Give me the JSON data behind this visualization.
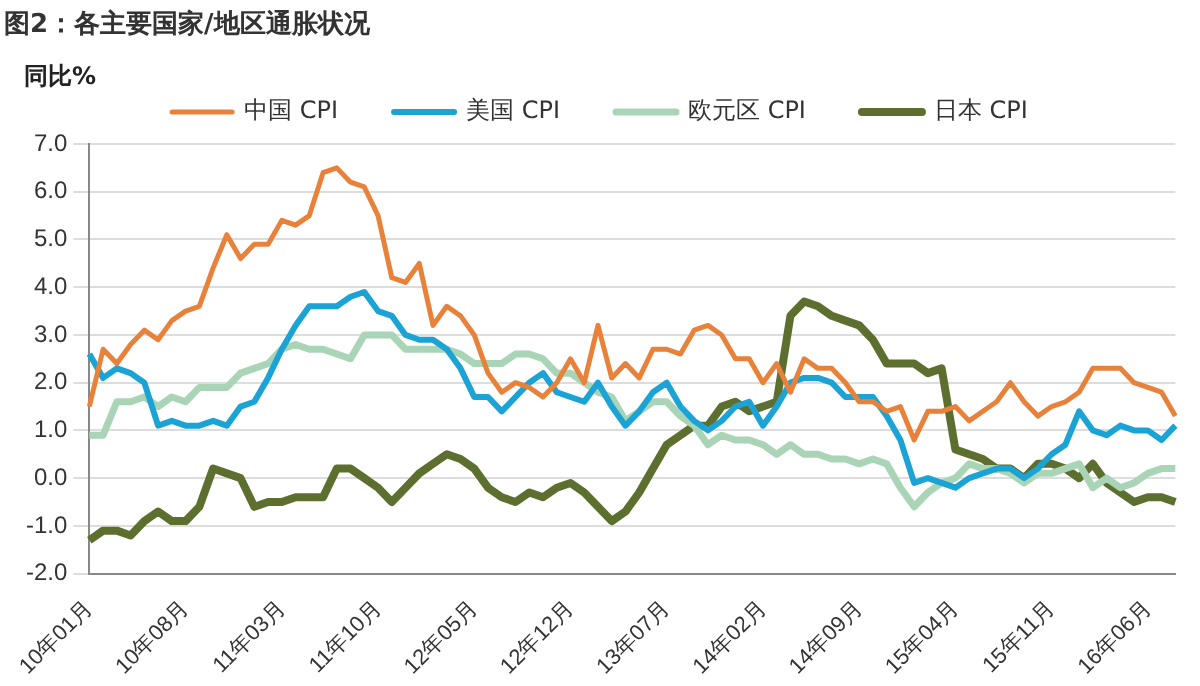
{
  "chart_data": {
    "type": "line",
    "title": "图2：各主要国家/地区通胀状况",
    "ylabel": "同比%",
    "categories": [
      "10年01月",
      null,
      null,
      null,
      null,
      null,
      null,
      "10年08月",
      null,
      null,
      null,
      null,
      null,
      null,
      "11年03月",
      null,
      null,
      null,
      null,
      null,
      null,
      "11年10月",
      null,
      null,
      null,
      null,
      null,
      null,
      "12年05月",
      null,
      null,
      null,
      null,
      null,
      null,
      "12年12月",
      null,
      null,
      null,
      null,
      null,
      null,
      "13年07月",
      null,
      null,
      null,
      null,
      null,
      null,
      "14年02月",
      null,
      null,
      null,
      null,
      null,
      null,
      "14年09月",
      null,
      null,
      null,
      null,
      null,
      null,
      "15年04月",
      null,
      null,
      null,
      null,
      null,
      null,
      "15年11月",
      null,
      null,
      null,
      null,
      null,
      null,
      "16年06月",
      null,
      null
    ],
    "series": [
      {
        "name": "中国 CPI",
        "color": "#e8823a",
        "values": [
          1.5,
          2.7,
          2.4,
          2.8,
          3.1,
          2.9,
          3.3,
          3.5,
          3.6,
          4.4,
          5.1,
          4.6,
          4.9,
          4.9,
          5.4,
          5.3,
          5.5,
          6.4,
          6.5,
          6.2,
          6.1,
          5.5,
          4.2,
          4.1,
          4.5,
          3.2,
          3.6,
          3.4,
          3.0,
          2.2,
          1.8,
          2.0,
          1.9,
          1.7,
          2.0,
          2.5,
          2.0,
          3.2,
          2.1,
          2.4,
          2.1,
          2.7,
          2.7,
          2.6,
          3.1,
          3.2,
          3.0,
          2.5,
          2.5,
          2.0,
          2.4,
          1.8,
          2.5,
          2.3,
          2.3,
          2.0,
          1.6,
          1.6,
          1.4,
          1.5,
          0.8,
          1.4,
          1.4,
          1.5,
          1.2,
          1.4,
          1.6,
          2.0,
          1.6,
          1.3,
          1.5,
          1.6,
          1.8,
          2.3,
          2.3,
          2.3,
          2.0,
          1.9,
          1.8,
          1.3
        ]
      },
      {
        "name": "美国 CPI",
        "color": "#1aa3d4",
        "values": [
          2.6,
          2.1,
          2.3,
          2.2,
          2.0,
          1.1,
          1.2,
          1.1,
          1.1,
          1.2,
          1.1,
          1.5,
          1.6,
          2.1,
          2.7,
          3.2,
          3.6,
          3.6,
          3.6,
          3.8,
          3.9,
          3.5,
          3.4,
          3.0,
          2.9,
          2.9,
          2.7,
          2.3,
          1.7,
          1.7,
          1.4,
          1.7,
          2.0,
          2.2,
          1.8,
          1.7,
          1.6,
          2.0,
          1.5,
          1.1,
          1.4,
          1.8,
          2.0,
          1.5,
          1.2,
          1.0,
          1.2,
          1.5,
          1.6,
          1.1,
          1.5,
          2.0,
          2.1,
          2.1,
          2.0,
          1.7,
          1.7,
          1.7,
          1.3,
          0.8,
          -0.1,
          0.0,
          -0.1,
          -0.2,
          0.0,
          0.1,
          0.2,
          0.2,
          0.0,
          0.2,
          0.5,
          0.7,
          1.4,
          1.0,
          0.9,
          1.1,
          1.0,
          1.0,
          0.8,
          1.1
        ]
      },
      {
        "name": "欧元区 CPI",
        "color": "#a9d4b6",
        "values": [
          0.9,
          0.9,
          1.6,
          1.6,
          1.7,
          1.5,
          1.7,
          1.6,
          1.9,
          1.9,
          1.9,
          2.2,
          2.3,
          2.4,
          2.7,
          2.8,
          2.7,
          2.7,
          2.6,
          2.5,
          3.0,
          3.0,
          3.0,
          2.7,
          2.7,
          2.7,
          2.7,
          2.6,
          2.4,
          2.4,
          2.4,
          2.6,
          2.6,
          2.5,
          2.2,
          2.2,
          2.0,
          1.8,
          1.7,
          1.2,
          1.4,
          1.6,
          1.6,
          1.3,
          1.1,
          0.7,
          0.9,
          0.8,
          0.8,
          0.7,
          0.5,
          0.7,
          0.5,
          0.5,
          0.4,
          0.4,
          0.3,
          0.4,
          0.3,
          -0.2,
          -0.6,
          -0.3,
          -0.1,
          0.0,
          0.3,
          0.2,
          0.2,
          0.1,
          -0.1,
          0.1,
          0.1,
          0.2,
          0.3,
          -0.2,
          0.0,
          -0.2,
          -0.1,
          0.1,
          0.2,
          0.2
        ]
      },
      {
        "name": "日本 CPI",
        "color": "#5c6f2f",
        "values": [
          -1.3,
          -1.1,
          -1.1,
          -1.2,
          -0.9,
          -0.7,
          -0.9,
          -0.9,
          -0.6,
          0.2,
          0.1,
          0.0,
          -0.6,
          -0.5,
          -0.5,
          -0.4,
          -0.4,
          -0.4,
          0.2,
          0.2,
          0.0,
          -0.2,
          -0.5,
          -0.2,
          0.1,
          0.3,
          0.5,
          0.4,
          0.2,
          -0.2,
          -0.4,
          -0.5,
          -0.3,
          -0.4,
          -0.2,
          -0.1,
          -0.3,
          -0.6,
          -0.9,
          -0.7,
          -0.3,
          0.2,
          0.7,
          0.9,
          1.1,
          1.1,
          1.5,
          1.6,
          1.4,
          1.5,
          1.6,
          3.4,
          3.7,
          3.6,
          3.4,
          3.3,
          3.2,
          2.9,
          2.4,
          2.4,
          2.4,
          2.2,
          2.3,
          0.6,
          0.5,
          0.4,
          0.2,
          0.2,
          0.0,
          0.3,
          0.3,
          0.2,
          0.0,
          0.3,
          -0.1,
          -0.3,
          -0.5,
          -0.4,
          -0.4,
          -0.5
        ]
      }
    ],
    "ylim": [
      -2,
      7
    ],
    "yticks": [
      {
        "value": -2,
        "label": "-2.0"
      },
      {
        "value": -1,
        "label": "-1.0"
      },
      {
        "value": 0,
        "label": "0.0"
      },
      {
        "value": 1,
        "label": "1.0"
      },
      {
        "value": 2,
        "label": "2.0"
      },
      {
        "value": 3,
        "label": "3.0"
      },
      {
        "value": 4,
        "label": "4.0"
      },
      {
        "value": 5,
        "label": "5.0"
      },
      {
        "value": 6,
        "label": "6.0"
      },
      {
        "value": 7,
        "label": "7.0"
      }
    ],
    "grid": "y",
    "legend": "top",
    "marker": "none",
    "line_style": "solid"
  }
}
